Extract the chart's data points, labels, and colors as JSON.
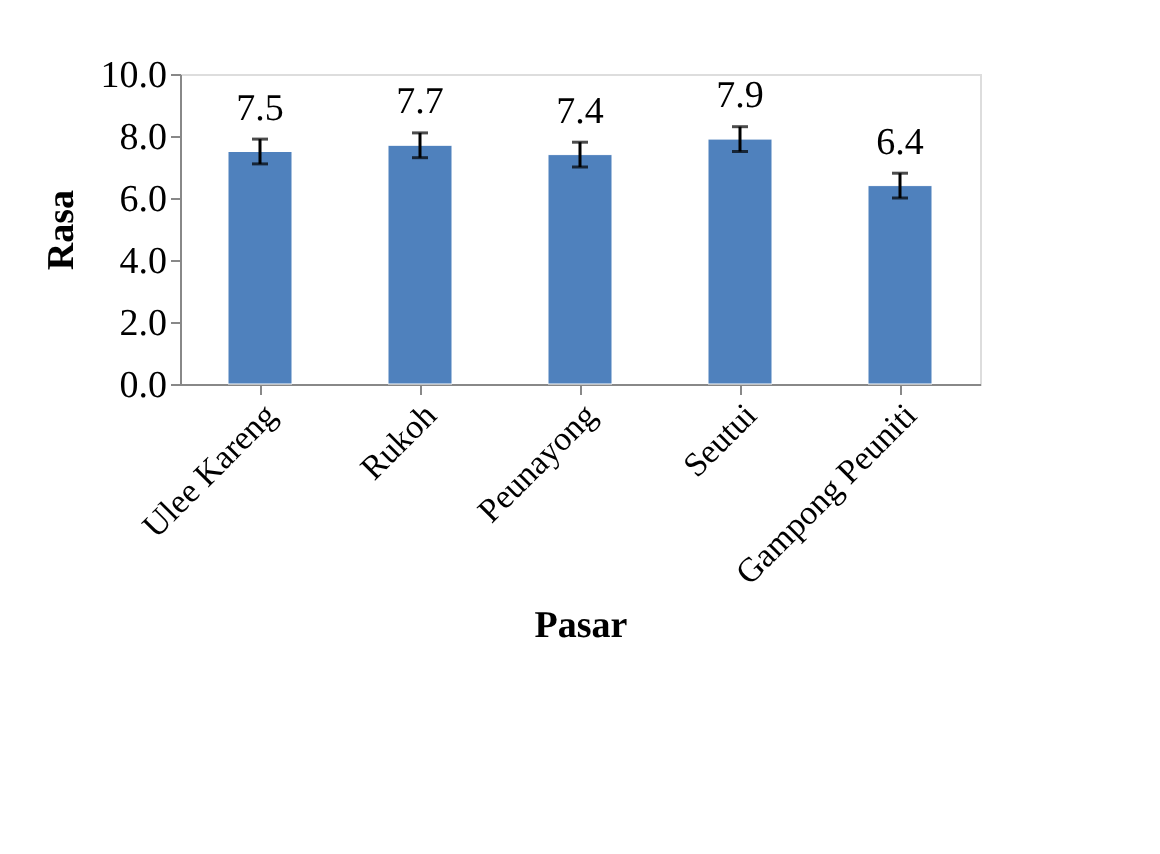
{
  "chart_data": {
    "type": "bar",
    "xlabel": "Pasar",
    "ylabel": "Rasa",
    "categories": [
      "Ulee Kareng",
      "Rukoh",
      "Peunayong",
      "Seutui",
      "Gampong Peuniti"
    ],
    "values": [
      7.5,
      7.7,
      7.4,
      7.9,
      6.4
    ],
    "errors": [
      0.4,
      0.4,
      0.4,
      0.4,
      0.4
    ],
    "color": "#4f81bd",
    "data_labels": true,
    "grid": false,
    "ylim": [
      0,
      10
    ],
    "yticks": [
      {
        "value": 0,
        "label": "0.0"
      },
      {
        "value": 2,
        "label": "2.0"
      },
      {
        "value": 4,
        "label": "4.0"
      },
      {
        "value": 6,
        "label": "6.0"
      },
      {
        "value": 8,
        "label": "8.0"
      },
      {
        "value": 10,
        "label": "10.0"
      }
    ]
  }
}
